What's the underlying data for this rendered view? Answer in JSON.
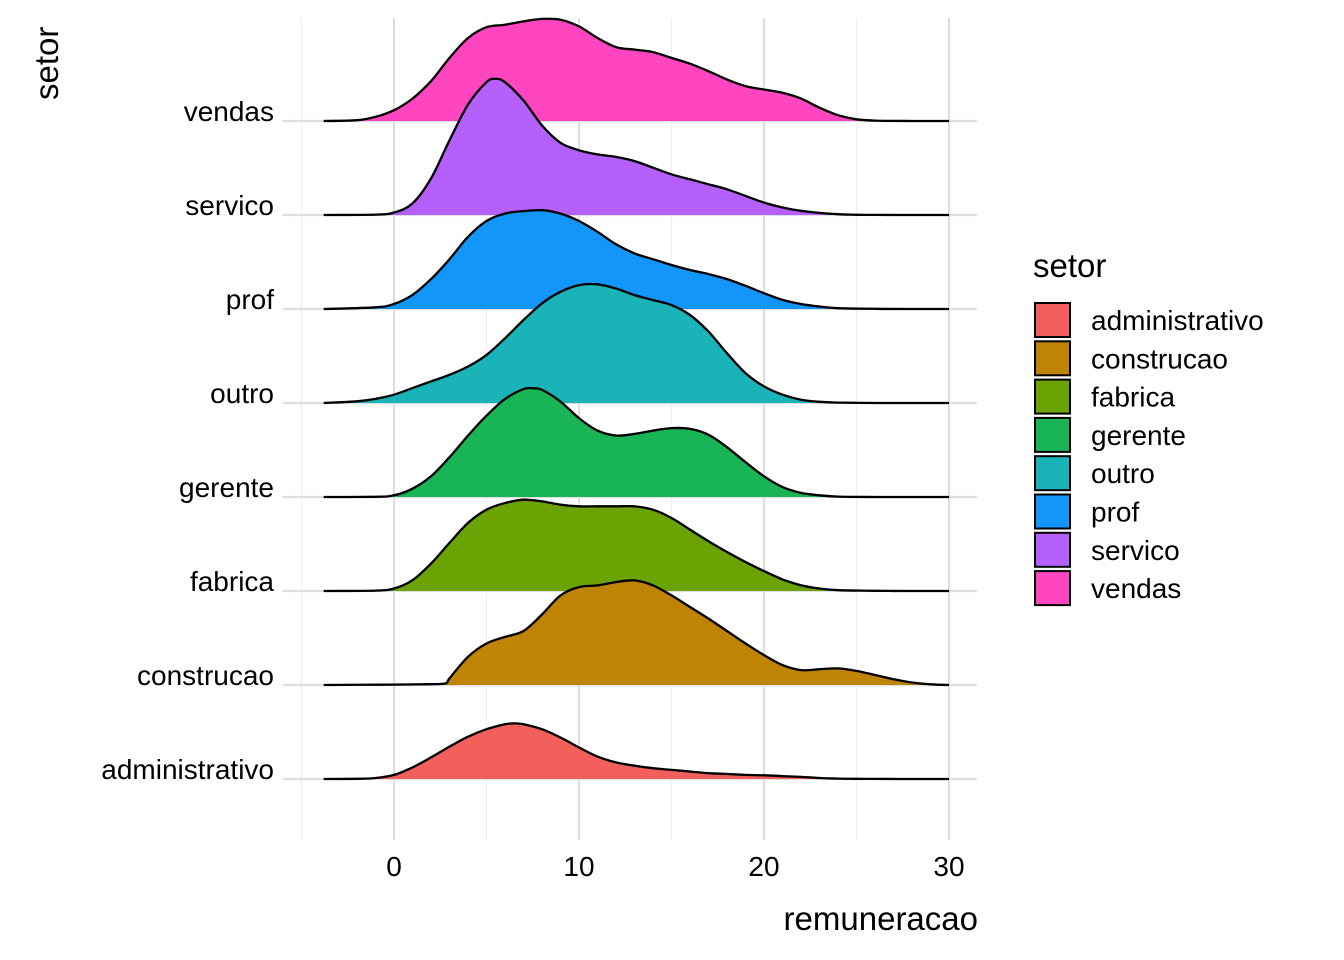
{
  "chart_data": {
    "type": "ridgeline",
    "xlabel": "remuneracao",
    "ylabel": "setor",
    "xlim": [
      -3.8,
      31.6
    ],
    "x_ticks": [
      0,
      10,
      20,
      30
    ],
    "x_tick_labels": [
      "0",
      "10",
      "20",
      "30"
    ],
    "grid": true,
    "legend": {
      "title": "setor",
      "position": "right",
      "entries": [
        "administrativo",
        "construcao",
        "fabrica",
        "gerente",
        "outro",
        "prof",
        "servico",
        "vendas"
      ]
    },
    "colors": {
      "administrativo": "#F8766D",
      "construcao": "#C49A00",
      "fabrica": "#53B400",
      "gerente": "#00C094",
      "outro": "#00B6EB",
      "prof": "#A58AFF",
      "servico": "#FB61D7",
      "vendas": "#FF4FC9"
    },
    "series": [
      {
        "name": "administrativo",
        "fill": "#F35F5B",
        "x": [
          -3.8,
          -2,
          -1,
          0,
          1,
          2,
          3,
          4,
          5,
          6,
          6.5,
          7,
          8,
          9,
          10,
          11,
          12,
          13,
          14,
          15,
          16,
          17,
          18,
          19,
          20,
          21,
          22,
          23,
          24,
          25,
          26,
          28,
          30
        ],
        "y": [
          0,
          0.003,
          0.012,
          0.05,
          0.14,
          0.26,
          0.39,
          0.51,
          0.6,
          0.66,
          0.67,
          0.66,
          0.6,
          0.5,
          0.38,
          0.27,
          0.2,
          0.16,
          0.13,
          0.11,
          0.09,
          0.07,
          0.06,
          0.05,
          0.045,
          0.035,
          0.025,
          0.012,
          0.005,
          0.002,
          0.001,
          0,
          0
        ]
      },
      {
        "name": "construcao",
        "fill": "#BF8404",
        "x": [
          -3.8,
          0,
          2,
          2.8,
          3,
          4,
          5,
          6,
          7,
          8,
          9,
          10,
          11,
          12,
          13,
          14,
          15,
          16,
          17,
          18,
          19,
          20,
          21,
          22,
          23,
          24,
          25,
          26,
          27,
          28,
          29,
          30
        ],
        "y": [
          0,
          0.005,
          0.01,
          0.02,
          0.08,
          0.34,
          0.5,
          0.58,
          0.65,
          0.85,
          1.08,
          1.18,
          1.2,
          1.24,
          1.26,
          1.2,
          1.08,
          0.94,
          0.8,
          0.65,
          0.5,
          0.36,
          0.24,
          0.18,
          0.19,
          0.2,
          0.17,
          0.12,
          0.07,
          0.03,
          0.008,
          0
        ]
      },
      {
        "name": "fabrica",
        "fill": "#6BA305",
        "x": [
          -3.8,
          -1,
          0,
          1,
          2,
          3,
          4,
          5,
          6,
          7,
          8,
          9,
          10,
          11,
          12,
          13,
          14,
          15,
          16,
          17,
          18,
          19,
          20,
          21,
          22,
          23,
          24,
          26,
          28,
          30
        ],
        "y": [
          0,
          0.005,
          0.03,
          0.13,
          0.33,
          0.58,
          0.82,
          0.98,
          1.06,
          1.1,
          1.08,
          1.04,
          1.02,
          1.02,
          1.02,
          1.02,
          0.98,
          0.88,
          0.74,
          0.6,
          0.47,
          0.35,
          0.24,
          0.14,
          0.07,
          0.03,
          0.01,
          0.003,
          0,
          0
        ]
      },
      {
        "name": "gerente",
        "fill": "#18B455",
        "x": [
          -3.8,
          -1,
          0,
          1,
          2,
          3,
          4,
          5,
          6,
          7,
          7.5,
          8,
          9,
          10,
          11,
          12,
          13,
          14,
          15,
          16,
          17,
          18,
          19,
          20,
          21,
          22,
          23,
          24,
          26,
          28,
          30
        ],
        "y": [
          0,
          0.003,
          0.02,
          0.1,
          0.25,
          0.48,
          0.74,
          0.98,
          1.18,
          1.3,
          1.31,
          1.29,
          1.15,
          0.95,
          0.8,
          0.74,
          0.76,
          0.8,
          0.83,
          0.82,
          0.75,
          0.6,
          0.42,
          0.25,
          0.12,
          0.05,
          0.02,
          0.005,
          0,
          0,
          0
        ]
      },
      {
        "name": "outro",
        "fill": "#1AB3B7",
        "x": [
          -3.8,
          -2,
          -1,
          0,
          1,
          2,
          3,
          4,
          5,
          6,
          7,
          8,
          9,
          10,
          11,
          12,
          13,
          14,
          15,
          16,
          17,
          18,
          19,
          20,
          21,
          22,
          23,
          24,
          26,
          28,
          30
        ],
        "y": [
          0,
          0.02,
          0.05,
          0.1,
          0.18,
          0.26,
          0.34,
          0.44,
          0.58,
          0.78,
          1.0,
          1.2,
          1.34,
          1.42,
          1.43,
          1.38,
          1.3,
          1.24,
          1.18,
          1.06,
          0.86,
          0.6,
          0.36,
          0.2,
          0.1,
          0.04,
          0.015,
          0.005,
          0,
          0,
          0
        ]
      },
      {
        "name": "prof",
        "fill": "#1296FA",
        "x": [
          -3.8,
          -1,
          0,
          1,
          2,
          3,
          4,
          5,
          6,
          7,
          8,
          9,
          10,
          11,
          12,
          13,
          14,
          15,
          16,
          17,
          18,
          19,
          20,
          21,
          22,
          23,
          24,
          26,
          28,
          30
        ],
        "y": [
          0,
          0.02,
          0.06,
          0.17,
          0.36,
          0.6,
          0.87,
          1.06,
          1.15,
          1.18,
          1.19,
          1.15,
          1.06,
          0.93,
          0.78,
          0.67,
          0.6,
          0.53,
          0.47,
          0.42,
          0.36,
          0.28,
          0.19,
          0.11,
          0.06,
          0.03,
          0.01,
          0.002,
          0,
          0
        ]
      },
      {
        "name": "servico",
        "fill": "#B55FFD",
        "x": [
          -3.8,
          -1,
          0,
          1,
          2,
          3,
          4,
          5,
          5.5,
          6,
          7,
          8,
          9,
          10,
          11,
          12,
          13,
          14,
          15,
          16,
          17,
          18,
          19,
          20,
          21,
          22,
          23,
          24,
          25,
          26,
          28,
          30
        ],
        "y": [
          0,
          0.005,
          0.03,
          0.14,
          0.44,
          0.9,
          1.33,
          1.6,
          1.64,
          1.6,
          1.38,
          1.08,
          0.87,
          0.78,
          0.73,
          0.7,
          0.65,
          0.57,
          0.49,
          0.43,
          0.37,
          0.31,
          0.23,
          0.15,
          0.09,
          0.05,
          0.025,
          0.01,
          0.003,
          0.001,
          0,
          0
        ]
      },
      {
        "name": "vendas",
        "fill": "#FF45C0",
        "x": [
          -3.8,
          -2,
          -1,
          0,
          1,
          2,
          3,
          4,
          5,
          6,
          7,
          8,
          9,
          10,
          11,
          12,
          13,
          14,
          15,
          16,
          17,
          18,
          19,
          20,
          21,
          22,
          23,
          24,
          25,
          26,
          28,
          30
        ],
        "y": [
          0,
          0.01,
          0.05,
          0.13,
          0.27,
          0.48,
          0.76,
          1.0,
          1.13,
          1.16,
          1.2,
          1.23,
          1.22,
          1.14,
          1.0,
          0.89,
          0.86,
          0.83,
          0.76,
          0.69,
          0.6,
          0.5,
          0.42,
          0.38,
          0.34,
          0.27,
          0.16,
          0.07,
          0.02,
          0.005,
          0,
          0
        ]
      }
    ]
  }
}
